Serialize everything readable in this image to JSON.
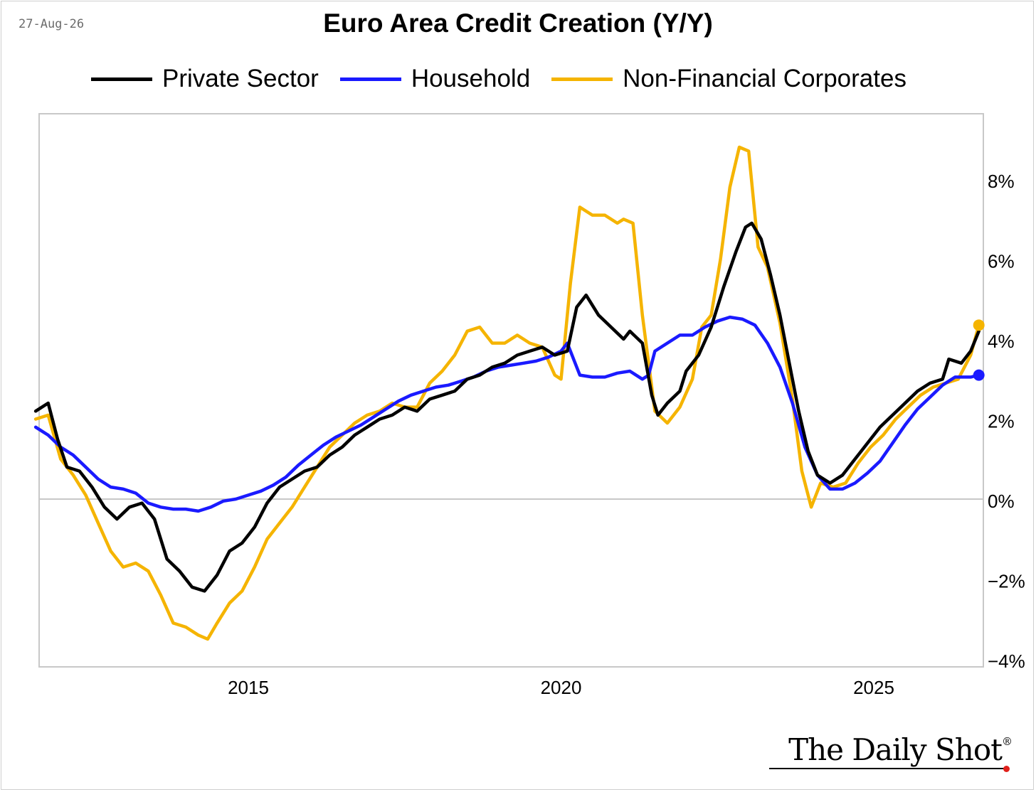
{
  "date_label": "27-Aug-26",
  "logo": {
    "text": "The Daily Shot",
    "reg": "®"
  },
  "chart_data": {
    "type": "line",
    "title": "Euro Area Credit Creation (Y/Y)",
    "xlabel": "",
    "ylabel": "",
    "x_ticks": [
      "2015",
      "2020",
      "2025"
    ],
    "y_ticks": [
      "8%",
      "6%",
      "4%",
      "2%",
      "0%",
      "−2%",
      "−4%"
    ],
    "y_unit": "%",
    "ylim": [
      -4.2,
      9.6
    ],
    "xlim": [
      2011.6,
      2026.75
    ],
    "grid": false,
    "zero_line": true,
    "legend_position": "top",
    "y_axis_side": "right",
    "series": [
      {
        "name": "Private Sector",
        "color": "#000000",
        "points": [
          [
            2011.6,
            2.2
          ],
          [
            2011.8,
            2.4
          ],
          [
            2011.95,
            1.5
          ],
          [
            2012.1,
            0.8
          ],
          [
            2012.3,
            0.7
          ],
          [
            2012.5,
            0.3
          ],
          [
            2012.7,
            -0.2
          ],
          [
            2012.9,
            -0.5
          ],
          [
            2013.1,
            -0.2
          ],
          [
            2013.3,
            -0.1
          ],
          [
            2013.5,
            -0.5
          ],
          [
            2013.7,
            -1.5
          ],
          [
            2013.9,
            -1.8
          ],
          [
            2014.1,
            -2.2
          ],
          [
            2014.3,
            -2.3
          ],
          [
            2014.5,
            -1.9
          ],
          [
            2014.7,
            -1.3
          ],
          [
            2014.9,
            -1.1
          ],
          [
            2015.1,
            -0.7
          ],
          [
            2015.3,
            -0.1
          ],
          [
            2015.5,
            0.3
          ],
          [
            2015.7,
            0.5
          ],
          [
            2015.9,
            0.7
          ],
          [
            2016.1,
            0.8
          ],
          [
            2016.3,
            1.1
          ],
          [
            2016.5,
            1.3
          ],
          [
            2016.7,
            1.6
          ],
          [
            2016.9,
            1.8
          ],
          [
            2017.1,
            2.0
          ],
          [
            2017.3,
            2.1
          ],
          [
            2017.5,
            2.3
          ],
          [
            2017.7,
            2.2
          ],
          [
            2017.9,
            2.5
          ],
          [
            2018.1,
            2.6
          ],
          [
            2018.3,
            2.7
          ],
          [
            2018.5,
            3.0
          ],
          [
            2018.7,
            3.1
          ],
          [
            2018.9,
            3.3
          ],
          [
            2019.1,
            3.4
          ],
          [
            2019.3,
            3.6
          ],
          [
            2019.5,
            3.7
          ],
          [
            2019.7,
            3.8
          ],
          [
            2019.9,
            3.6
          ],
          [
            2020.1,
            3.7
          ],
          [
            2020.25,
            4.8
          ],
          [
            2020.4,
            5.1
          ],
          [
            2020.6,
            4.6
          ],
          [
            2020.8,
            4.3
          ],
          [
            2021.0,
            4.0
          ],
          [
            2021.1,
            4.2
          ],
          [
            2021.3,
            3.9
          ],
          [
            2021.45,
            2.6
          ],
          [
            2021.55,
            2.1
          ],
          [
            2021.7,
            2.4
          ],
          [
            2021.9,
            2.7
          ],
          [
            2022.0,
            3.2
          ],
          [
            2022.2,
            3.6
          ],
          [
            2022.4,
            4.3
          ],
          [
            2022.6,
            5.3
          ],
          [
            2022.8,
            6.2
          ],
          [
            2022.95,
            6.8
          ],
          [
            2023.05,
            6.9
          ],
          [
            2023.2,
            6.5
          ],
          [
            2023.35,
            5.6
          ],
          [
            2023.5,
            4.6
          ],
          [
            2023.65,
            3.4
          ],
          [
            2023.8,
            2.2
          ],
          [
            2023.95,
            1.2
          ],
          [
            2024.1,
            0.6
          ],
          [
            2024.3,
            0.4
          ],
          [
            2024.5,
            0.6
          ],
          [
            2024.7,
            1.0
          ],
          [
            2024.9,
            1.4
          ],
          [
            2025.1,
            1.8
          ],
          [
            2025.3,
            2.1
          ],
          [
            2025.5,
            2.4
          ],
          [
            2025.7,
            2.7
          ],
          [
            2025.9,
            2.9
          ],
          [
            2026.1,
            3.0
          ],
          [
            2026.2,
            3.5
          ],
          [
            2026.4,
            3.4
          ],
          [
            2026.55,
            3.7
          ],
          [
            2026.68,
            4.2
          ]
        ]
      },
      {
        "name": "Household",
        "color": "#1a1aff",
        "points": [
          [
            2011.6,
            1.8
          ],
          [
            2011.8,
            1.6
          ],
          [
            2012.0,
            1.3
          ],
          [
            2012.2,
            1.1
          ],
          [
            2012.4,
            0.8
          ],
          [
            2012.6,
            0.5
          ],
          [
            2012.8,
            0.3
          ],
          [
            2013.0,
            0.25
          ],
          [
            2013.2,
            0.15
          ],
          [
            2013.4,
            -0.1
          ],
          [
            2013.6,
            -0.2
          ],
          [
            2013.8,
            -0.25
          ],
          [
            2014.0,
            -0.25
          ],
          [
            2014.2,
            -0.3
          ],
          [
            2014.4,
            -0.2
          ],
          [
            2014.6,
            -0.05
          ],
          [
            2014.8,
            0.0
          ],
          [
            2015.0,
            0.1
          ],
          [
            2015.2,
            0.2
          ],
          [
            2015.4,
            0.35
          ],
          [
            2015.6,
            0.55
          ],
          [
            2015.8,
            0.85
          ],
          [
            2016.0,
            1.1
          ],
          [
            2016.2,
            1.35
          ],
          [
            2016.4,
            1.55
          ],
          [
            2016.6,
            1.7
          ],
          [
            2016.8,
            1.85
          ],
          [
            2017.0,
            2.05
          ],
          [
            2017.2,
            2.25
          ],
          [
            2017.4,
            2.45
          ],
          [
            2017.6,
            2.6
          ],
          [
            2017.8,
            2.7
          ],
          [
            2018.0,
            2.8
          ],
          [
            2018.2,
            2.85
          ],
          [
            2018.4,
            2.95
          ],
          [
            2018.6,
            3.05
          ],
          [
            2018.8,
            3.2
          ],
          [
            2019.0,
            3.3
          ],
          [
            2019.2,
            3.35
          ],
          [
            2019.4,
            3.4
          ],
          [
            2019.6,
            3.45
          ],
          [
            2019.8,
            3.55
          ],
          [
            2020.0,
            3.7
          ],
          [
            2020.1,
            3.9
          ],
          [
            2020.3,
            3.1
          ],
          [
            2020.5,
            3.05
          ],
          [
            2020.7,
            3.05
          ],
          [
            2020.9,
            3.15
          ],
          [
            2021.1,
            3.2
          ],
          [
            2021.3,
            3.0
          ],
          [
            2021.4,
            3.1
          ],
          [
            2021.5,
            3.7
          ],
          [
            2021.7,
            3.9
          ],
          [
            2021.9,
            4.1
          ],
          [
            2022.1,
            4.1
          ],
          [
            2022.3,
            4.3
          ],
          [
            2022.5,
            4.45
          ],
          [
            2022.7,
            4.55
          ],
          [
            2022.9,
            4.5
          ],
          [
            2023.1,
            4.35
          ],
          [
            2023.3,
            3.9
          ],
          [
            2023.5,
            3.3
          ],
          [
            2023.7,
            2.4
          ],
          [
            2023.9,
            1.3
          ],
          [
            2024.1,
            0.6
          ],
          [
            2024.3,
            0.25
          ],
          [
            2024.5,
            0.25
          ],
          [
            2024.7,
            0.4
          ],
          [
            2024.9,
            0.65
          ],
          [
            2025.1,
            0.95
          ],
          [
            2025.3,
            1.4
          ],
          [
            2025.5,
            1.85
          ],
          [
            2025.7,
            2.25
          ],
          [
            2025.9,
            2.55
          ],
          [
            2026.1,
            2.85
          ],
          [
            2026.3,
            3.05
          ],
          [
            2026.55,
            3.05
          ],
          [
            2026.68,
            3.1
          ]
        ]
      },
      {
        "name": "Non-Financial Corporates",
        "color": "#f5b400",
        "points": [
          [
            2011.6,
            2.0
          ],
          [
            2011.8,
            2.1
          ],
          [
            2012.0,
            1.0
          ],
          [
            2012.2,
            0.6
          ],
          [
            2012.4,
            0.1
          ],
          [
            2012.6,
            -0.6
          ],
          [
            2012.8,
            -1.3
          ],
          [
            2013.0,
            -1.7
          ],
          [
            2013.2,
            -1.6
          ],
          [
            2013.4,
            -1.8
          ],
          [
            2013.6,
            -2.4
          ],
          [
            2013.8,
            -3.1
          ],
          [
            2014.0,
            -3.2
          ],
          [
            2014.2,
            -3.4
          ],
          [
            2014.35,
            -3.5
          ],
          [
            2014.5,
            -3.1
          ],
          [
            2014.7,
            -2.6
          ],
          [
            2014.9,
            -2.3
          ],
          [
            2015.1,
            -1.7
          ],
          [
            2015.3,
            -1.0
          ],
          [
            2015.5,
            -0.6
          ],
          [
            2015.7,
            -0.2
          ],
          [
            2015.9,
            0.3
          ],
          [
            2016.1,
            0.8
          ],
          [
            2016.3,
            1.3
          ],
          [
            2016.5,
            1.6
          ],
          [
            2016.7,
            1.9
          ],
          [
            2016.9,
            2.1
          ],
          [
            2017.1,
            2.2
          ],
          [
            2017.3,
            2.4
          ],
          [
            2017.5,
            2.3
          ],
          [
            2017.7,
            2.3
          ],
          [
            2017.9,
            2.9
          ],
          [
            2018.1,
            3.2
          ],
          [
            2018.3,
            3.6
          ],
          [
            2018.5,
            4.2
          ],
          [
            2018.7,
            4.3
          ],
          [
            2018.9,
            3.9
          ],
          [
            2019.1,
            3.9
          ],
          [
            2019.3,
            4.1
          ],
          [
            2019.5,
            3.9
          ],
          [
            2019.7,
            3.8
          ],
          [
            2019.9,
            3.1
          ],
          [
            2020.0,
            3.0
          ],
          [
            2020.15,
            5.4
          ],
          [
            2020.3,
            7.3
          ],
          [
            2020.5,
            7.1
          ],
          [
            2020.7,
            7.1
          ],
          [
            2020.9,
            6.9
          ],
          [
            2021.0,
            7.0
          ],
          [
            2021.15,
            6.9
          ],
          [
            2021.3,
            4.6
          ],
          [
            2021.5,
            2.2
          ],
          [
            2021.7,
            1.9
          ],
          [
            2021.9,
            2.3
          ],
          [
            2022.1,
            3.0
          ],
          [
            2022.25,
            4.3
          ],
          [
            2022.4,
            4.6
          ],
          [
            2022.55,
            6.0
          ],
          [
            2022.7,
            7.8
          ],
          [
            2022.85,
            8.8
          ],
          [
            2023.0,
            8.7
          ],
          [
            2023.15,
            6.3
          ],
          [
            2023.3,
            5.8
          ],
          [
            2023.5,
            4.4
          ],
          [
            2023.7,
            2.5
          ],
          [
            2023.85,
            0.7
          ],
          [
            2024.0,
            -0.2
          ],
          [
            2024.15,
            0.4
          ],
          [
            2024.35,
            0.3
          ],
          [
            2024.55,
            0.4
          ],
          [
            2024.75,
            0.9
          ],
          [
            2024.95,
            1.3
          ],
          [
            2025.15,
            1.6
          ],
          [
            2025.35,
            2.0
          ],
          [
            2025.55,
            2.3
          ],
          [
            2025.75,
            2.6
          ],
          [
            2025.95,
            2.8
          ],
          [
            2026.15,
            2.9
          ],
          [
            2026.35,
            3.0
          ],
          [
            2026.55,
            3.6
          ],
          [
            2026.68,
            4.35
          ]
        ]
      }
    ]
  }
}
